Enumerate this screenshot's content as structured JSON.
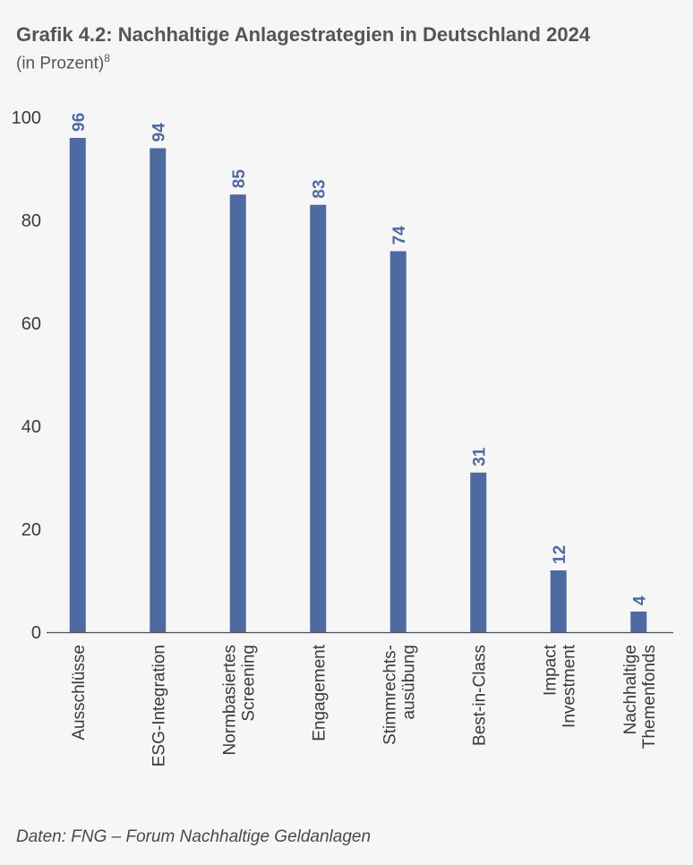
{
  "header": {
    "title": "Grafik 4.2: Nachhaltige Anlagestrategien in Deutschland 2024",
    "subtitle": "(in Prozent)",
    "footnote_marker": "8"
  },
  "footer": {
    "source": "Daten: FNG – Forum Nachhaltige Geldanlagen"
  },
  "colors": {
    "bar": "#4f6aa0",
    "label": "#4f6aa0",
    "axis": "#555555",
    "text": "#3a3a3a"
  },
  "chart_data": {
    "type": "bar",
    "categories": [
      [
        "Ausschlüsse"
      ],
      [
        "ESG-Integration"
      ],
      [
        "Normbasiertes",
        "Screening"
      ],
      [
        "Engagement"
      ],
      [
        "Stimmrechts-",
        "ausübung"
      ],
      [
        "Best-in-Class"
      ],
      [
        "Impact",
        "Investment"
      ],
      [
        "Nachhaltige",
        "Themenfonds"
      ]
    ],
    "values": [
      96,
      94,
      85,
      83,
      74,
      31,
      12,
      4
    ],
    "yticks": [
      0,
      20,
      40,
      60,
      80,
      100
    ],
    "ylim": [
      0,
      100
    ],
    "grid": false,
    "legend": "none"
  }
}
